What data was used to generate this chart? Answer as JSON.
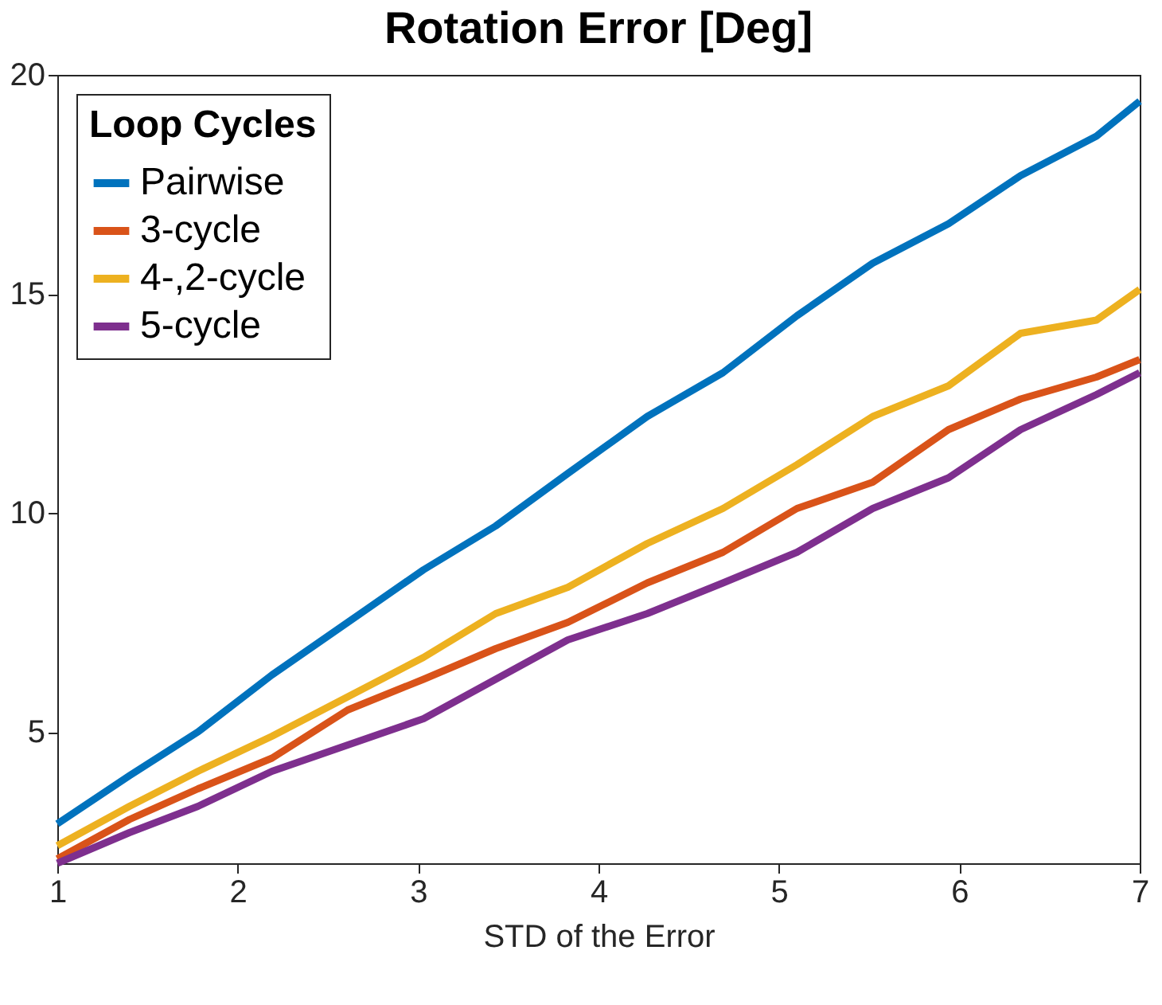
{
  "chart_data": {
    "type": "line",
    "title": "Rotation Error [Deg]",
    "xlabel": "STD of the Error",
    "legend_title": "Loop Cycles",
    "x": [
      1,
      1.4,
      1.78,
      2.19,
      2.61,
      3.03,
      3.43,
      3.83,
      4.27,
      4.69,
      5.1,
      5.52,
      5.94,
      6.34,
      6.76,
      7
    ],
    "series": [
      {
        "name": "Pairwise",
        "color": "#0072bd",
        "values": [
          2.9,
          4.0,
          5.0,
          6.3,
          7.5,
          8.7,
          9.7,
          10.9,
          12.2,
          13.2,
          14.5,
          15.7,
          16.6,
          17.7,
          18.6,
          19.4
        ]
      },
      {
        "name": "3-cycle",
        "color": "#d95319",
        "values": [
          2.1,
          3.0,
          3.7,
          4.4,
          5.5,
          6.2,
          6.9,
          7.5,
          8.4,
          9.1,
          10.1,
          10.7,
          11.9,
          12.6,
          13.1,
          13.5
        ]
      },
      {
        "name": "4-,2-cycle",
        "color": "#edb120",
        "values": [
          2.4,
          3.3,
          4.1,
          4.9,
          5.8,
          6.7,
          7.7,
          8.3,
          9.3,
          10.1,
          11.1,
          12.2,
          12.9,
          14.1,
          14.4,
          15.1
        ]
      },
      {
        "name": "5-cycle",
        "color": "#7e2f8e",
        "values": [
          2.0,
          2.7,
          3.3,
          4.1,
          4.7,
          5.3,
          6.2,
          7.1,
          7.7,
          8.4,
          9.1,
          10.1,
          10.8,
          11.9,
          12.7,
          13.2
        ]
      }
    ],
    "xlim": [
      1,
      7
    ],
    "xticks": [
      1,
      2,
      3,
      4,
      5,
      6,
      7
    ],
    "ylim": [
      2,
      20
    ],
    "yticks": [
      5,
      10,
      15,
      20
    ],
    "grid": false,
    "legend": "top left",
    "marker": "none",
    "line_style": "solid"
  }
}
